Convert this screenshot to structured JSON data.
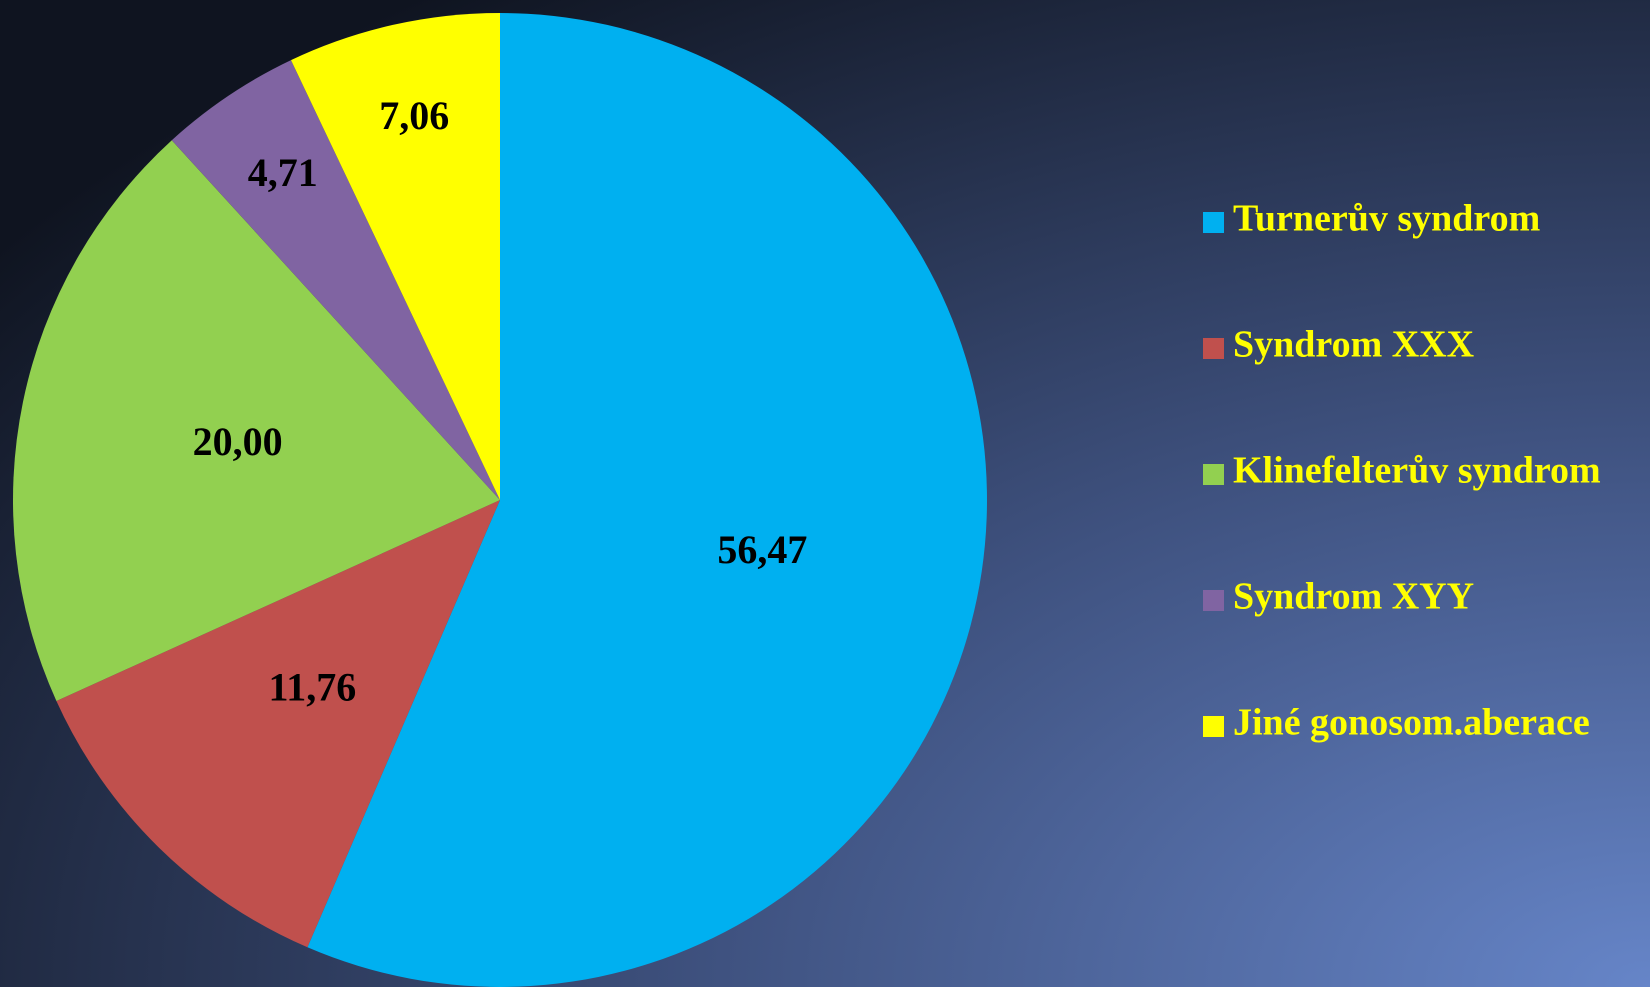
{
  "chart_data": {
    "type": "pie",
    "categories": [
      "Turnerův syndrom",
      "Syndrom XXX",
      "Klinefelterův syndrom",
      "Syndrom XYY",
      "Jiné gonosom.aberace"
    ],
    "values": [
      56.47,
      11.76,
      20.0,
      4.71,
      7.06
    ],
    "value_labels": [
      "56,47",
      "11,76",
      "20,00",
      "4,71",
      "7,06"
    ],
    "colors": [
      "#00b0f0",
      "#c0504d",
      "#92d050",
      "#8064a2",
      "#ffff00"
    ],
    "legend": "right"
  }
}
